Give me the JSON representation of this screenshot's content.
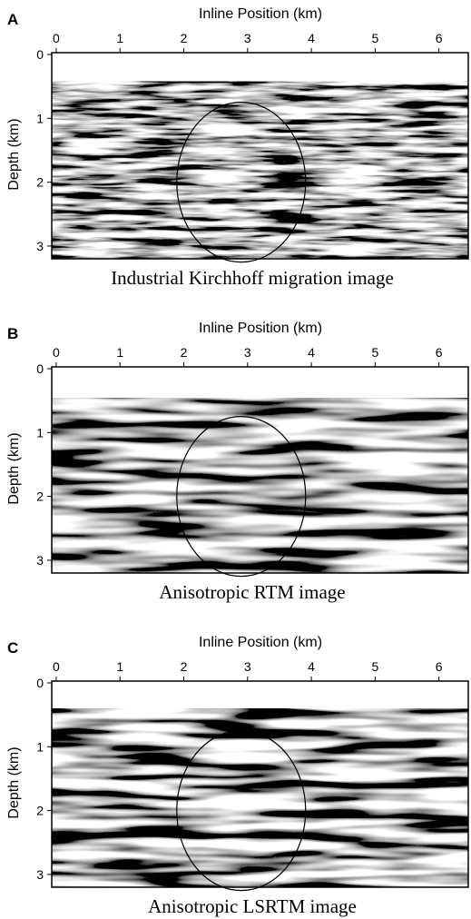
{
  "panels": [
    {
      "label": "A",
      "x_axis_title": "Inline Position (km)",
      "xticks": [
        0,
        1,
        2,
        3,
        4,
        5,
        6
      ],
      "xlim": [
        -0.07,
        6.46
      ],
      "y_axis_title": "Depth (km)",
      "yticks": [
        0,
        1,
        2,
        3
      ],
      "ylim": [
        0,
        3.2
      ],
      "caption": "Industrial Kirchhoff migration image"
    },
    {
      "label": "B",
      "x_axis_title": "Inline Position (km)",
      "xticks": [
        0,
        1,
        2,
        3,
        4,
        5,
        6
      ],
      "xlim": [
        -0.07,
        6.46
      ],
      "y_axis_title": "Depth (km)",
      "yticks": [
        0,
        1,
        2,
        3
      ],
      "ylim": [
        0,
        3.2
      ],
      "caption": "Anisotropic RTM image"
    },
    {
      "label": "C",
      "x_axis_title": "Inline Position (km)",
      "xticks": [
        0,
        1,
        2,
        3,
        4,
        5,
        6
      ],
      "xlim": [
        -0.07,
        6.46
      ],
      "y_axis_title": "Depth (km)",
      "yticks": [
        0,
        1,
        2,
        3
      ],
      "ylim": [
        0,
        3.2
      ],
      "caption": "Anisotropic LSRTM image"
    }
  ]
}
